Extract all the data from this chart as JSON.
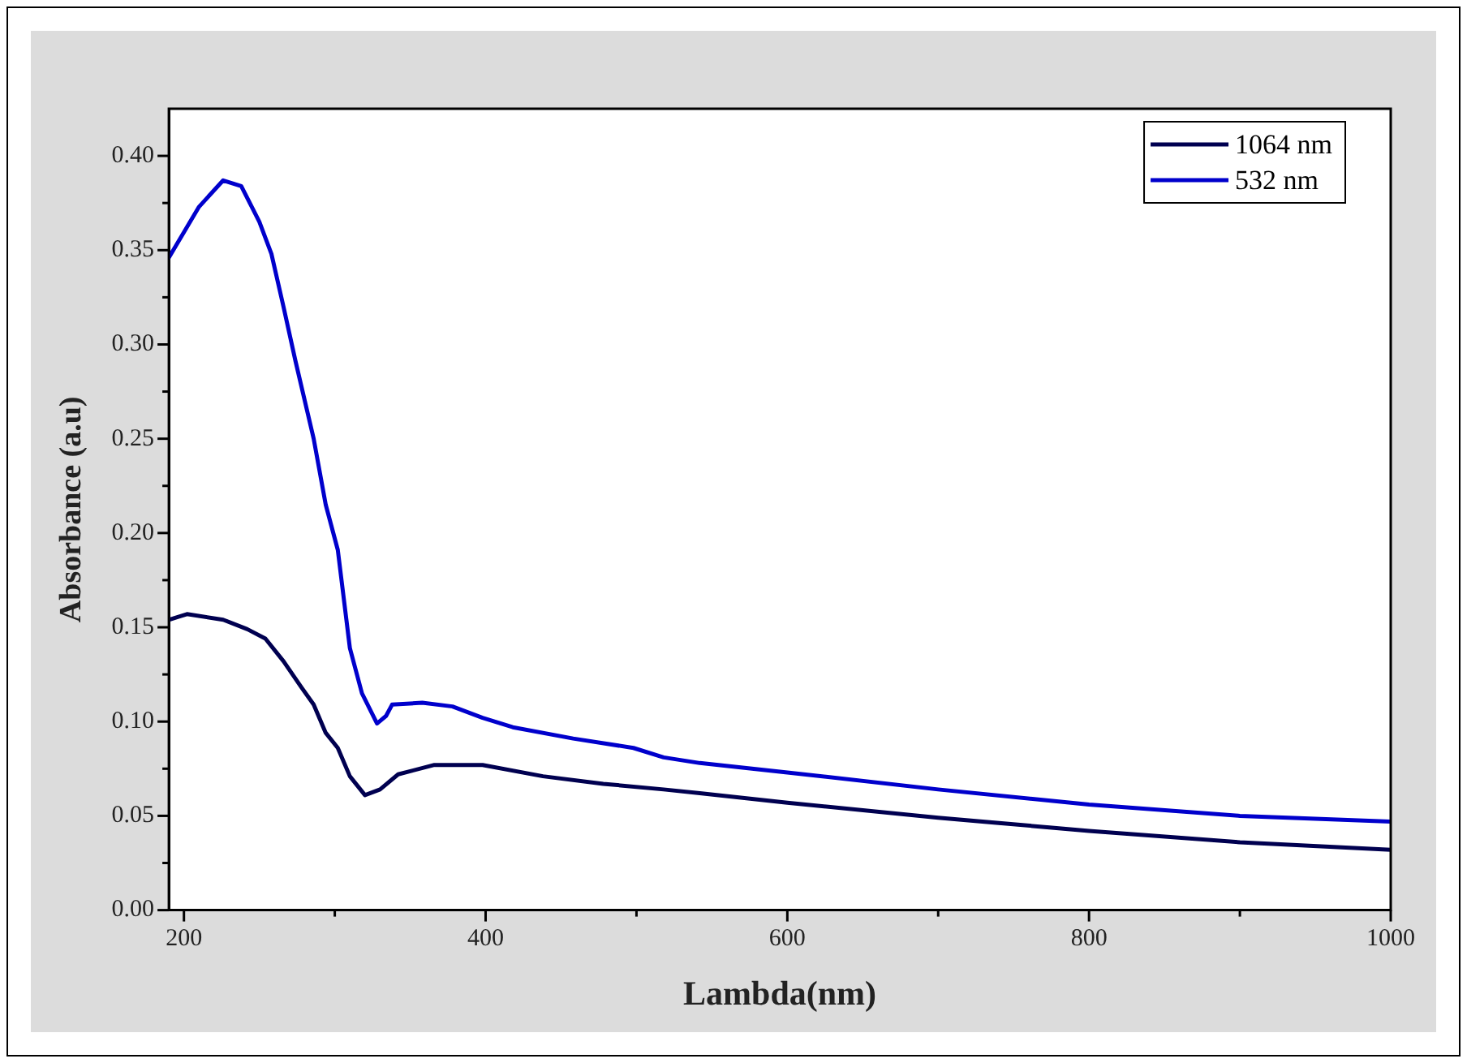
{
  "chart_data": {
    "type": "line",
    "xlabel": "Lambda(nm)",
    "ylabel": "Absorbance (a.u)",
    "xlim": [
      190,
      1000
    ],
    "xticks": [
      200,
      {
        "value": 300,
        "label": null
      },
      400,
      {
        "value": 500,
        "label": null
      },
      600,
      {
        "value": 700,
        "label": null
      },
      800,
      {
        "value": 900,
        "label": null
      },
      1000
    ],
    "ylim": [
      0,
      0.425
    ],
    "yticks": [
      "0.00",
      {
        "value": 0.025,
        "label": null
      },
      {
        "value": 0.05,
        "label": "0.05"
      },
      {
        "value": 0.075,
        "label": null
      },
      {
        "value": 0.1,
        "label": "0.10"
      },
      {
        "value": 0.125,
        "label": null
      },
      {
        "value": 0.15,
        "label": "0.15"
      },
      {
        "value": 0.175,
        "label": null
      },
      {
        "value": 0.2,
        "label": "0.20"
      },
      {
        "value": 0.225,
        "label": null
      },
      {
        "value": 0.25,
        "label": "0.25"
      },
      {
        "value": 0.275,
        "label": null
      },
      {
        "value": 0.3,
        "label": "0.30"
      },
      {
        "value": 0.325,
        "label": null
      },
      {
        "value": 0.35,
        "label": "0.35"
      },
      {
        "value": 0.375,
        "label": null
      },
      {
        "value": 0.4,
        "label": "0.40"
      }
    ],
    "grid": false,
    "legend": "top right",
    "marker": "none",
    "line_style": "solid",
    "series": [
      {
        "name": "1064 nm",
        "color": "#000050",
        "x": [
          190,
          202,
          226,
          242,
          254,
          266,
          278,
          286,
          294,
          302,
          310,
          320,
          330,
          342,
          366,
          398,
          438,
          478,
          518,
          542,
          600,
          700,
          800,
          900,
          1000
        ],
        "values": [
          0.154,
          0.157,
          0.154,
          0.149,
          0.144,
          0.132,
          0.118,
          0.109,
          0.094,
          0.086,
          0.071,
          0.061,
          0.064,
          0.072,
          0.077,
          0.077,
          0.071,
          0.067,
          0.064,
          0.062,
          0.057,
          0.049,
          0.042,
          0.036,
          0.032
        ]
      },
      {
        "name": "532 nm",
        "color": "#0000cc",
        "x": [
          190,
          210,
          226,
          238,
          250,
          258,
          266,
          274,
          286,
          294,
          302,
          310,
          318,
          328,
          334,
          338,
          358,
          378,
          398,
          418,
          458,
          498,
          518,
          542,
          600,
          700,
          800,
          900,
          1000
        ],
        "values": [
          0.346,
          0.373,
          0.387,
          0.384,
          0.365,
          0.348,
          0.32,
          0.291,
          0.25,
          0.215,
          0.191,
          0.139,
          0.115,
          0.099,
          0.103,
          0.109,
          0.11,
          0.108,
          0.102,
          0.097,
          0.091,
          0.086,
          0.081,
          0.078,
          0.073,
          0.064,
          0.056,
          0.05,
          0.047
        ]
      }
    ]
  }
}
